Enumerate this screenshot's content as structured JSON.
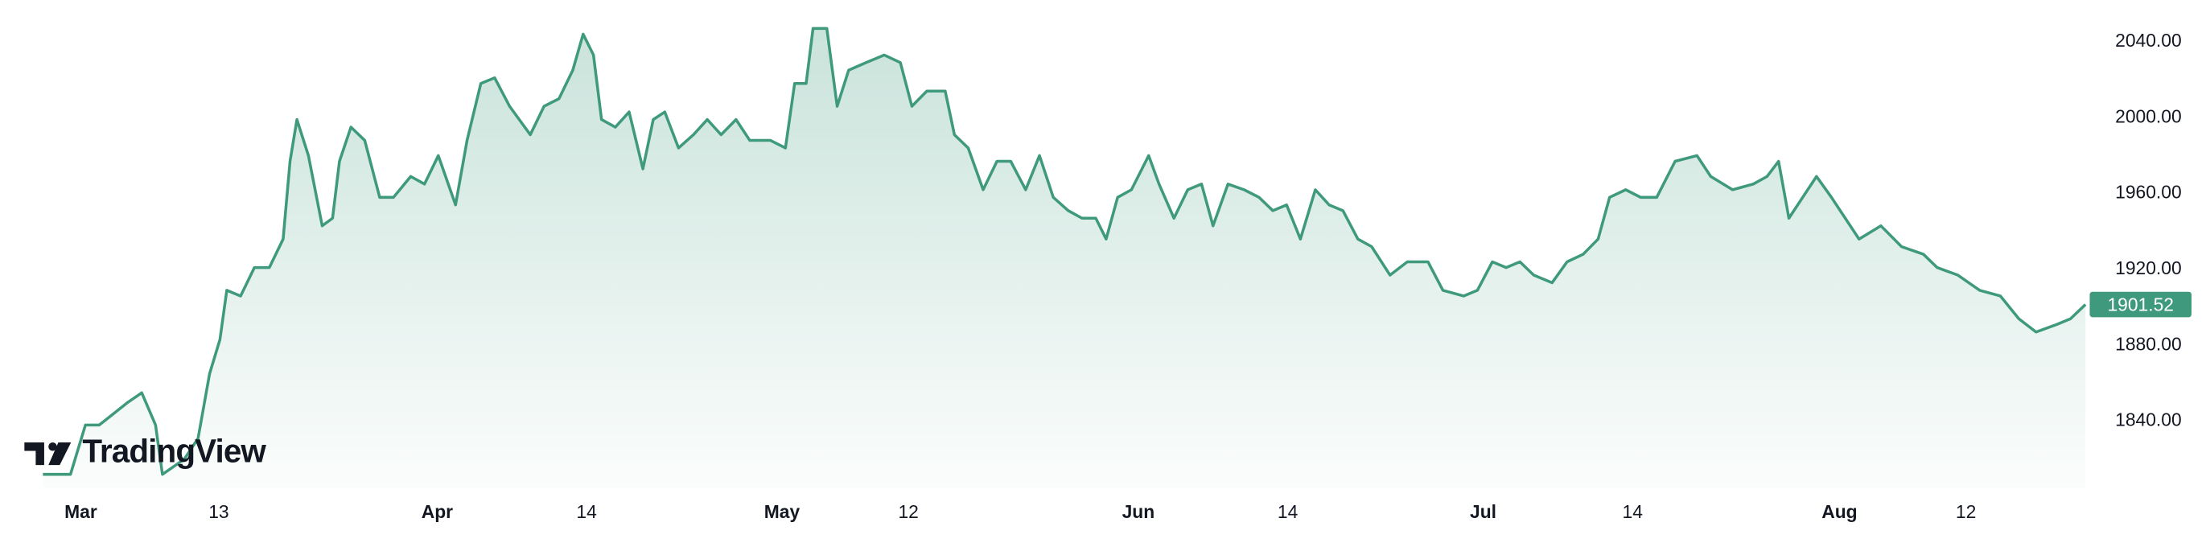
{
  "chart_data": {
    "type": "area",
    "logo": "TradingView",
    "x": [
      -3.3,
      -0.9,
      0.4,
      1.6,
      4.1,
      5.3,
      6.5,
      7.1,
      9.0,
      10.2,
      11.2,
      12.1,
      12.7,
      13.9,
      15.1,
      16.4,
      17.6,
      18.2,
      18.8,
      19.8,
      21.0,
      21.9,
      22.5,
      23.5,
      24.7,
      26.0,
      27.2,
      28.7,
      29.9,
      31.1,
      32.6,
      33.6,
      34.8,
      36.0,
      37.3,
      39.1,
      40.3,
      41.6,
      42.8,
      43.7,
      44.6,
      45.3,
      46.5,
      47.7,
      48.9,
      49.8,
      50.8,
      52.0,
      53.3,
      54.5,
      55.7,
      57.0,
      58.2,
      60.0,
      61.3,
      62.1,
      63.1,
      63.7,
      64.9,
      65.8,
      66.8,
      68.3,
      69.9,
      71.3,
      72.3,
      73.6,
      75.2,
      76.0,
      77.2,
      78.5,
      79.7,
      80.9,
      82.2,
      83.4,
      84.6,
      85.9,
      87.1,
      88.3,
      89.2,
      90.2,
      91.4,
      92.9,
      93.8,
      95.1,
      96.3,
      97.5,
      98.5,
      99.8,
      101.2,
      102.5,
      103.7,
      104.9,
      106.1,
      107.4,
      108.6,
      109.8,
      111.1,
      112.3,
      113.9,
      115.4,
      117.2,
      118.5,
      120.3,
      121.5,
      122.8,
      124.0,
      125.2,
      126.4,
      128.0,
      129.3,
      130.7,
      132.0,
      133.0,
      134.4,
      135.7,
      137.1,
      138.7,
      140.6,
      141.8,
      143.7,
      145.5,
      146.7,
      147.7,
      148.6,
      149.8,
      151.0,
      152.3,
      153.5,
      154.7,
      156.6,
      158.4,
      160.3,
      161.5,
      163.3,
      165.2,
      167.0,
      168.6,
      170.1,
      171.9,
      173.1,
      174.4
    ],
    "series": [
      {
        "color": "#3f9a7d",
        "values": [
          1812,
          1812,
          1838,
          1838,
          1850,
          1855,
          1838,
          1812,
          1820,
          1831,
          1865,
          1883,
          1909,
          1906,
          1921,
          1921,
          1936,
          1977,
          1999,
          1980,
          1943,
          1947,
          1977,
          1995,
          1988,
          1958,
          1958,
          1969,
          1965,
          1980,
          1954,
          1988,
          2018,
          2021,
          2006,
          1991,
          2006,
          2010,
          2025,
          2044,
          2033,
          1999,
          1995,
          2003,
          1973,
          1999,
          2003,
          1984,
          1991,
          1999,
          1991,
          1999,
          1988,
          1988,
          1984,
          2018,
          2018,
          2047,
          2047,
          2006,
          2025,
          2029,
          2033,
          2029,
          2006,
          2014,
          2014,
          1991,
          1984,
          1962,
          1977,
          1977,
          1962,
          1980,
          1958,
          1951,
          1947,
          1947,
          1936,
          1958,
          1962,
          1980,
          1965,
          1947,
          1962,
          1965,
          1943,
          1965,
          1962,
          1958,
          1951,
          1954,
          1936,
          1962,
          1954,
          1951,
          1936,
          1932,
          1917,
          1924,
          1924,
          1909,
          1906,
          1909,
          1924,
          1921,
          1924,
          1917,
          1913,
          1924,
          1928,
          1936,
          1958,
          1962,
          1958,
          1958,
          1977,
          1980,
          1969,
          1962,
          1965,
          1969,
          1977,
          1947,
          1958,
          1969,
          1958,
          1947,
          1936,
          1943,
          1932,
          1928,
          1921,
          1917,
          1909,
          1906,
          1894,
          1887,
          1891,
          1894,
          1901.52
        ]
      }
    ],
    "xlim": [
      -7.0,
      174.4
    ],
    "xticks": [
      {
        "value": 0,
        "label": "Mar"
      },
      {
        "value": 12,
        "label": "13"
      },
      {
        "value": 31,
        "label": "Apr"
      },
      {
        "value": 44,
        "label": "14"
      },
      {
        "value": 61,
        "label": "May"
      },
      {
        "value": 72,
        "label": "12"
      },
      {
        "value": 92,
        "label": "Jun"
      },
      {
        "value": 105,
        "label": "14"
      },
      {
        "value": 122,
        "label": "Jul"
      },
      {
        "value": 135,
        "label": "14"
      },
      {
        "value": 153,
        "label": "Aug"
      },
      {
        "value": 164,
        "label": "12"
      }
    ],
    "ylim": [
      1805,
      2062
    ],
    "yticks": [
      {
        "value": 1840,
        "label": "1840.00"
      },
      {
        "value": 1880,
        "label": "1880.00"
      },
      {
        "value": 1920,
        "label": "1920.00"
      },
      {
        "value": 1960,
        "label": "1960.00"
      },
      {
        "value": 2000,
        "label": "2000.00"
      },
      {
        "value": 2040,
        "label": "2040.00"
      }
    ]
  }
}
